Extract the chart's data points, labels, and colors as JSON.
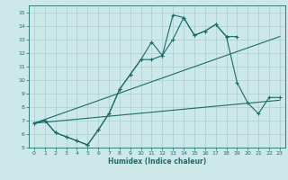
{
  "xlabel": "Humidex (Indice chaleur)",
  "bg_color": "#cce8e8",
  "line_color": "#1a6b6b",
  "grid_color": "#aacece",
  "xlim": [
    -0.5,
    23.5
  ],
  "ylim": [
    5,
    15.5
  ],
  "xticks": [
    0,
    1,
    2,
    3,
    4,
    5,
    6,
    7,
    8,
    9,
    10,
    11,
    12,
    13,
    14,
    15,
    16,
    17,
    18,
    19,
    20,
    21,
    22,
    23
  ],
  "yticks": [
    5,
    6,
    7,
    8,
    9,
    10,
    11,
    12,
    13,
    14,
    15
  ],
  "lines": [
    {
      "x": [
        0,
        1,
        2,
        3,
        4,
        5,
        6,
        7,
        8,
        9,
        10,
        11,
        12,
        13,
        14,
        15,
        16,
        17,
        18,
        19
      ],
      "y": [
        6.8,
        7.0,
        6.1,
        5.8,
        5.5,
        5.2,
        6.3,
        7.5,
        9.3,
        10.4,
        11.5,
        12.8,
        11.8,
        14.8,
        14.6,
        13.3,
        13.6,
        14.1,
        13.2,
        13.2
      ]
    },
    {
      "x": [
        0,
        1,
        2,
        3,
        4,
        5,
        6,
        7,
        8,
        9,
        10,
        11,
        12,
        13,
        14,
        15,
        16,
        17,
        18,
        19,
        20,
        21,
        22,
        23
      ],
      "y": [
        6.8,
        7.0,
        6.1,
        5.8,
        5.5,
        5.2,
        6.3,
        7.5,
        9.3,
        10.4,
        11.5,
        11.5,
        11.8,
        13.0,
        14.6,
        13.3,
        13.6,
        14.1,
        13.2,
        9.8,
        8.3,
        7.5,
        8.7,
        8.7
      ]
    },
    {
      "x": [
        0,
        23
      ],
      "y": [
        6.8,
        8.5
      ]
    },
    {
      "x": [
        0,
        23
      ],
      "y": [
        6.8,
        13.2
      ]
    }
  ]
}
